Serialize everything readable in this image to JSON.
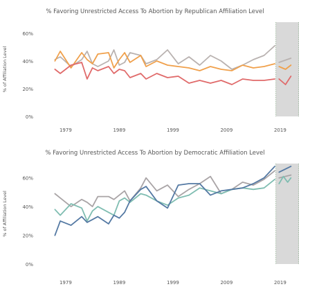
{
  "colors": {
    "strong": "#e06a6a",
    "not_very_strong": "#f0a04b",
    "independent_near": "#b9b2b0",
    "dem_strong": "#5479a3",
    "dem_not_strong": "#a9a4a6",
    "dem_independent_near": "#7fbdb1",
    "shade": "#d9d9d9"
  },
  "chart_data": [
    {
      "type": "line",
      "title": "% Favoring Unrestricted Access To Abortion by Republican Affiliation Level",
      "ylabel": "% of Affiliation Level",
      "ylim": [
        0,
        68
      ],
      "xlim": [
        1974.5,
        2022.5
      ],
      "yticks": [
        "0%",
        "20%",
        "40%",
        "60%"
      ],
      "ytick_values": [
        0,
        20,
        40,
        60
      ],
      "xticks": [
        "1979",
        "1989",
        "1999",
        "2009",
        "2019"
      ],
      "xtick_values": [
        1979,
        1989,
        1999,
        2009,
        2019
      ],
      "shaded_range": [
        2018.2,
        2022.5
      ],
      "series": [
        {
          "color_key": "independent_near",
          "x": [
            1977,
            1978,
            1980,
            1982,
            1983,
            1984,
            1985,
            1987,
            1988,
            1989,
            1990,
            1991,
            1993,
            1994,
            1996,
            1998,
            2000,
            2002,
            2004,
            2006,
            2008,
            2010,
            2012,
            2014,
            2016,
            2018
          ],
          "y": [
            41,
            43,
            36,
            41,
            47,
            38,
            36,
            40,
            48,
            37,
            39,
            46,
            44,
            38,
            41,
            48,
            38,
            43,
            37,
            44,
            40,
            34,
            37,
            41,
            44,
            51
          ]
        },
        {
          "color_key": "not_very_strong",
          "x": [
            1977,
            1978,
            1980,
            1982,
            1983,
            1984,
            1985,
            1987,
            1988,
            1989,
            1990,
            1991,
            1993,
            1994,
            1996,
            1998,
            2000,
            2002,
            2004,
            2006,
            2008,
            2010,
            2012,
            2014,
            2016,
            2018
          ],
          "y": [
            40,
            47,
            35,
            46,
            41,
            38,
            45,
            46,
            35,
            41,
            46,
            39,
            44,
            36,
            40,
            37,
            36,
            35,
            33,
            36,
            34,
            33,
            37,
            35,
            36,
            38
          ]
        },
        {
          "color_key": "strong",
          "x": [
            1977,
            1978,
            1980,
            1982,
            1983,
            1984,
            1985,
            1987,
            1988,
            1989,
            1990,
            1991,
            1993,
            1994,
            1996,
            1998,
            2000,
            2002,
            2004,
            2006,
            2008,
            2010,
            2012,
            2014,
            2016,
            2018
          ],
          "y": [
            34,
            31,
            37,
            39,
            27,
            35,
            33,
            36,
            31,
            34,
            33,
            28,
            31,
            27,
            31,
            28,
            29,
            24,
            26,
            24,
            26,
            23,
            27,
            26,
            26,
            27
          ]
        },
        {
          "color_key": "independent_near",
          "x": [
            2018.8,
            2021
          ],
          "y": [
            39,
            42
          ]
        },
        {
          "color_key": "not_very_strong",
          "x": [
            2018.8,
            2020,
            2021
          ],
          "y": [
            36,
            34,
            37
          ]
        },
        {
          "color_key": "strong",
          "x": [
            2018.8,
            2020,
            2021
          ],
          "y": [
            27,
            23,
            29
          ]
        }
      ]
    },
    {
      "type": "line",
      "title": "% Favoring Unrestricted Access To Abortion by Democratic Affiliation Level",
      "ylabel": "% of Affiliation Level",
      "ylim": [
        0,
        70
      ],
      "xlim": [
        1974.5,
        2022.5
      ],
      "yticks": [
        "0%",
        "20%",
        "40%",
        "60%"
      ],
      "ytick_values": [
        0,
        20,
        40,
        60
      ],
      "xticks": [
        "1979",
        "1989",
        "1999",
        "2009",
        "2019"
      ],
      "xtick_values": [
        1979,
        1989,
        1999,
        2009,
        2019
      ],
      "shaded_range": [
        2018.2,
        2022.5
      ],
      "series": [
        {
          "color_key": "dem_not_strong",
          "x": [
            1977,
            1978,
            1980,
            1982,
            1983,
            1984,
            1985,
            1987,
            1988,
            1989,
            1990,
            1991,
            1993,
            1994,
            1996,
            1998,
            2000,
            2002,
            2004,
            2006,
            2008,
            2010,
            2012,
            2014,
            2016,
            2018
          ],
          "y": [
            49,
            46,
            40,
            45,
            43,
            40,
            47,
            47,
            45,
            48,
            51,
            44,
            53,
            60,
            51,
            55,
            47,
            52,
            56,
            61,
            49,
            52,
            57,
            55,
            59,
            65
          ]
        },
        {
          "color_key": "dem_independent_near",
          "x": [
            1977,
            1978,
            1980,
            1982,
            1983,
            1984,
            1985,
            1987,
            1988,
            1989,
            1990,
            1991,
            1993,
            1994,
            1996,
            1998,
            2000,
            2002,
            2004,
            2006,
            2008,
            2010,
            2012,
            2014,
            2016,
            2018
          ],
          "y": [
            38,
            34,
            42,
            39,
            30,
            37,
            40,
            36,
            34,
            44,
            46,
            43,
            49,
            48,
            44,
            41,
            46,
            48,
            53,
            51,
            49,
            52,
            53,
            52,
            53,
            59
          ]
        },
        {
          "color_key": "dem_strong",
          "x": [
            1977,
            1978,
            1980,
            1982,
            1983,
            1984,
            1985,
            1987,
            1988,
            1989,
            1990,
            1991,
            1993,
            1994,
            1996,
            1998,
            2000,
            2002,
            2004,
            2006,
            2008,
            2010,
            2012,
            2014,
            2016,
            2018
          ],
          "y": [
            20,
            30,
            27,
            33,
            29,
            31,
            33,
            28,
            34,
            32,
            36,
            44,
            52,
            54,
            44,
            39,
            55,
            56,
            56,
            48,
            51,
            52,
            53,
            56,
            60,
            68
          ]
        },
        {
          "color_key": "dem_strong",
          "x": [
            2018.8,
            2021
          ],
          "y": [
            64,
            68
          ]
        },
        {
          "color_key": "dem_not_strong",
          "x": [
            2018.8,
            2021
          ],
          "y": [
            60,
            62
          ]
        },
        {
          "color_key": "dem_independent_near",
          "x": [
            2018.8,
            2019.6,
            2020.4,
            2021
          ],
          "y": [
            56,
            61,
            57,
            60
          ]
        }
      ]
    }
  ]
}
